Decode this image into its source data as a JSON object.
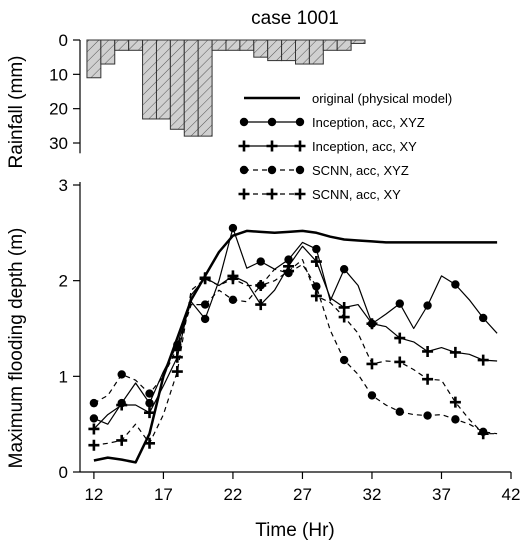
{
  "chart_data": {
    "type": "line",
    "title": "case 1001",
    "rainfall": {
      "ylabel": "Rainfall (mm)",
      "ylim": [
        0,
        30
      ],
      "yticks": [
        "0",
        "10",
        "20",
        "30"
      ],
      "hours": [
        12,
        13,
        14,
        15,
        16,
        17,
        18,
        19,
        20,
        21,
        22,
        23,
        24,
        25,
        26,
        27,
        28,
        29,
        30,
        31,
        32,
        33,
        34,
        35,
        36,
        37,
        38,
        39,
        40,
        41
      ],
      "values": [
        11,
        7,
        3,
        3,
        23,
        23,
        26,
        28,
        28,
        3,
        3,
        3,
        5,
        6,
        6,
        7,
        7,
        3,
        3,
        1,
        0,
        0,
        0,
        0,
        0,
        0,
        0,
        0,
        0,
        0
      ]
    },
    "flooding": {
      "xlabel": "Time (Hr)",
      "ylabel": "Maximum flooding depth (m)",
      "xlim": [
        11,
        42
      ],
      "ylim": [
        0,
        3
      ],
      "xticks": [
        "12",
        "17",
        "22",
        "27",
        "32",
        "37",
        "42"
      ],
      "yticks": [
        "0",
        "1",
        "2",
        "3"
      ],
      "series": [
        {
          "name": "original (physical model)",
          "marker": "none",
          "dash": "solid",
          "width": 2.5,
          "x": [
            12,
            13,
            14,
            15,
            16,
            17,
            18,
            19,
            20,
            21,
            22,
            23,
            24,
            25,
            26,
            27,
            28,
            29,
            30,
            31,
            32,
            33,
            34,
            35,
            36,
            37,
            38,
            39,
            40,
            41
          ],
          "y": [
            0.12,
            0.15,
            0.13,
            0.1,
            0.4,
            1.0,
            1.4,
            1.8,
            2.05,
            2.3,
            2.47,
            2.52,
            2.51,
            2.5,
            2.51,
            2.52,
            2.5,
            2.46,
            2.43,
            2.42,
            2.41,
            2.4,
            2.4,
            2.4,
            2.4,
            2.4,
            2.4,
            2.4,
            2.4,
            2.4
          ]
        },
        {
          "name": "Inception, acc, XYZ",
          "marker": "circle",
          "dash": "solid",
          "width": 1.2,
          "x": [
            12,
            13,
            14,
            15,
            16,
            17,
            18,
            19,
            20,
            21,
            22,
            23,
            24,
            25,
            26,
            27,
            28,
            29,
            30,
            31,
            32,
            33,
            34,
            35,
            36,
            37,
            38,
            39,
            40,
            41
          ],
          "y": [
            0.56,
            0.5,
            0.72,
            0.93,
            0.72,
            1.05,
            1.33,
            1.78,
            1.6,
            2.0,
            2.55,
            2.13,
            2.2,
            2.12,
            2.22,
            2.4,
            2.33,
            1.79,
            2.12,
            1.95,
            1.55,
            1.65,
            1.76,
            1.5,
            1.74,
            2.05,
            1.96,
            1.8,
            1.61,
            1.45
          ]
        },
        {
          "name": "Inception, acc, XY",
          "marker": "plus",
          "dash": "solid",
          "width": 1.2,
          "x": [
            12,
            13,
            14,
            15,
            16,
            17,
            18,
            19,
            20,
            21,
            22,
            23,
            24,
            25,
            26,
            27,
            28,
            29,
            30,
            31,
            32,
            33,
            34,
            35,
            36,
            37,
            38,
            39,
            40,
            41
          ],
          "y": [
            0.45,
            0.6,
            0.7,
            0.7,
            0.62,
            0.9,
            1.2,
            1.85,
            2.03,
            1.95,
            2.05,
            1.98,
            1.75,
            1.9,
            2.15,
            2.36,
            2.2,
            1.82,
            1.72,
            1.75,
            1.55,
            1.52,
            1.4,
            1.36,
            1.26,
            1.3,
            1.25,
            1.23,
            1.17,
            1.16
          ]
        },
        {
          "name": "SCNN, acc, XYZ",
          "marker": "circle",
          "dash": "dashed",
          "width": 1.2,
          "x": [
            12,
            13,
            14,
            15,
            16,
            17,
            18,
            19,
            20,
            21,
            22,
            23,
            24,
            25,
            26,
            27,
            28,
            29,
            30,
            31,
            32,
            33,
            34,
            35,
            36,
            37,
            38,
            39,
            40,
            41
          ],
          "y": [
            0.72,
            0.8,
            1.02,
            0.96,
            0.82,
            1.0,
            1.3,
            1.75,
            1.75,
            1.9,
            1.8,
            1.78,
            1.95,
            2.12,
            2.08,
            2.17,
            1.94,
            1.48,
            1.17,
            1.02,
            0.8,
            0.7,
            0.63,
            0.6,
            0.59,
            0.6,
            0.55,
            0.5,
            0.42,
            0.4
          ]
        },
        {
          "name": "SCNN, acc, XY",
          "marker": "plus",
          "dash": "dashed",
          "width": 1.2,
          "x": [
            12,
            13,
            14,
            15,
            16,
            17,
            18,
            19,
            20,
            21,
            22,
            23,
            24,
            25,
            26,
            27,
            28,
            29,
            30,
            31,
            32,
            33,
            34,
            35,
            36,
            37,
            38,
            39,
            40,
            41
          ],
          "y": [
            0.28,
            0.3,
            0.33,
            0.5,
            0.3,
            0.6,
            1.05,
            1.9,
            2.02,
            1.95,
            2.02,
            1.95,
            1.95,
            2.0,
            2.1,
            2.22,
            1.84,
            1.77,
            1.62,
            1.45,
            1.13,
            1.16,
            1.15,
            1.07,
            0.97,
            0.96,
            0.73,
            0.55,
            0.4,
            0.4
          ]
        }
      ]
    }
  }
}
